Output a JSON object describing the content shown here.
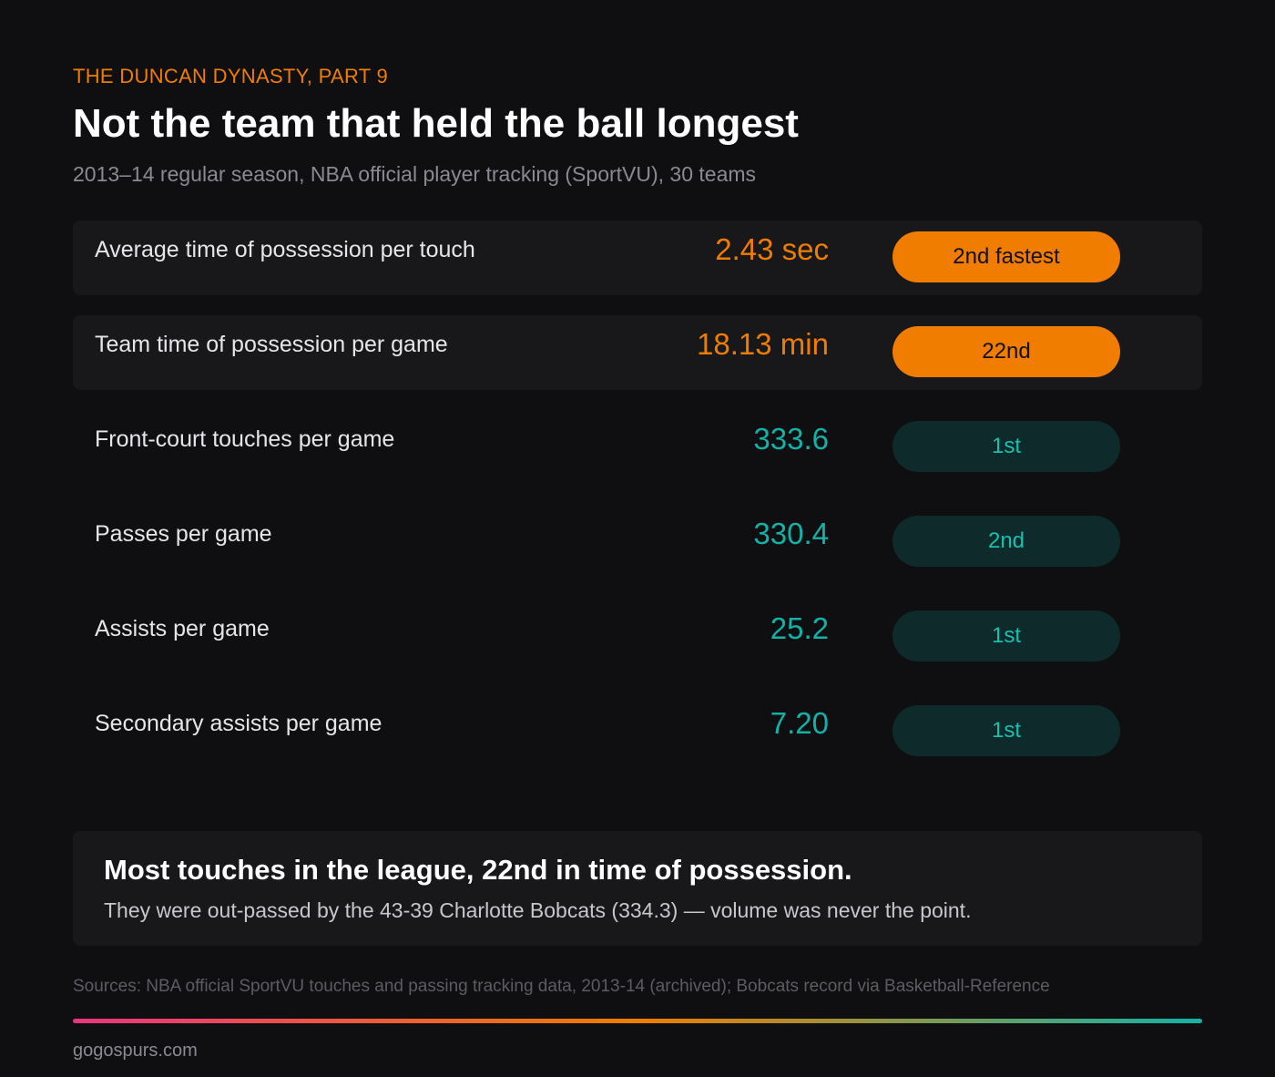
{
  "header": {
    "kicker": "THE DUNCAN DYNASTY, PART 9",
    "title": "Not the team that held the ball longest",
    "subtitle": "2013–14 regular season, NBA official player tracking (SportVU), 30 teams"
  },
  "stats": [
    {
      "label": "Average time of possession per touch",
      "value": "2.43 sec",
      "rank": "2nd fastest",
      "tone": "orange"
    },
    {
      "label": "Team time of possession per game",
      "value": "18.13 min",
      "rank": "22nd",
      "tone": "orange"
    },
    {
      "label": "Front-court touches per game",
      "value": "333.6",
      "rank": "1st",
      "tone": "teal"
    },
    {
      "label": "Passes per game",
      "value": "330.4",
      "rank": "2nd",
      "tone": "teal"
    },
    {
      "label": "Assists per game",
      "value": "25.2",
      "rank": "1st",
      "tone": "teal"
    },
    {
      "label": "Secondary assists per game",
      "value": "7.20",
      "rank": "1st",
      "tone": "teal"
    }
  ],
  "callout": {
    "headline": "Most touches in the league, 22nd in time of possession.",
    "body": "They were out-passed by the 43-39 Charlotte Bobcats (334.3) — volume was never the point."
  },
  "footer": {
    "sources": "Sources: NBA official SportVU touches and passing tracking data, 2013-14 (archived); Bobcats record via Basketball-Reference",
    "site": "gogospurs.com"
  },
  "colors": {
    "accent_orange": "#f07d00",
    "accent_teal": "#12b3a6",
    "background": "#0f0f11",
    "card": "#18181b",
    "gradient": [
      "#e8367f",
      "#f07d00",
      "#12b3a6"
    ]
  }
}
